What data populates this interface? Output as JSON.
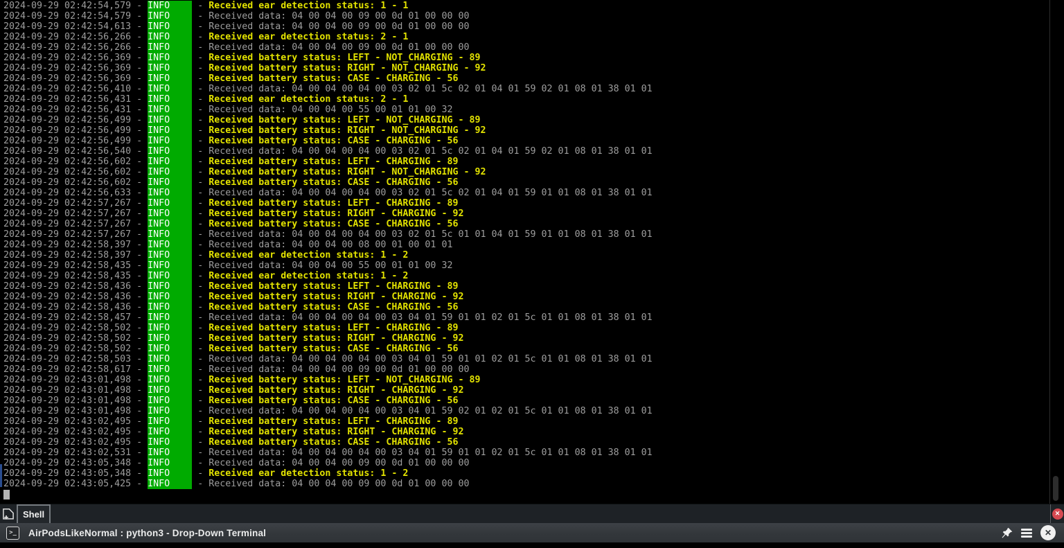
{
  "colors": {
    "background": "#000000",
    "log_default_gray": "#9e9e9e",
    "log_event_yellow": "#e2e200",
    "info_badge_bg": "#00ab00",
    "info_badge_fg": "#ffffff",
    "tab_close_red": "#d54850",
    "output_marker_blue": "#2a4d8f"
  },
  "terminal": {
    "separator": " - ",
    "level_field_width": 8,
    "lines": [
      {
        "time": "2024-09-29 02:42:54,579",
        "level": "INFO",
        "kind": "event",
        "message": "Received ear detection status: 1 - 1"
      },
      {
        "time": "2024-09-29 02:42:54,579",
        "level": "INFO",
        "kind": "data",
        "message": "Received data: 04 00 04 00 09 00 0d 01 00 00 00"
      },
      {
        "time": "2024-09-29 02:42:54,613",
        "level": "INFO",
        "kind": "data",
        "message": "Received data: 04 00 04 00 09 00 0d 01 00 00 00"
      },
      {
        "time": "2024-09-29 02:42:56,266",
        "level": "INFO",
        "kind": "event",
        "message": "Received ear detection status: 2 - 1"
      },
      {
        "time": "2024-09-29 02:42:56,266",
        "level": "INFO",
        "kind": "data",
        "message": "Received data: 04 00 04 00 09 00 0d 01 00 00 00"
      },
      {
        "time": "2024-09-29 02:42:56,369",
        "level": "INFO",
        "kind": "event",
        "message": "Received battery status: LEFT - NOT_CHARGING - 89"
      },
      {
        "time": "2024-09-29 02:42:56,369",
        "level": "INFO",
        "kind": "event",
        "message": "Received battery status: RIGHT - NOT_CHARGING - 92"
      },
      {
        "time": "2024-09-29 02:42:56,369",
        "level": "INFO",
        "kind": "event",
        "message": "Received battery status: CASE - CHARGING - 56"
      },
      {
        "time": "2024-09-29 02:42:56,410",
        "level": "INFO",
        "kind": "data",
        "message": "Received data: 04 00 04 00 04 00 03 02 01 5c 02 01 04 01 59 02 01 08 01 38 01 01"
      },
      {
        "time": "2024-09-29 02:42:56,431",
        "level": "INFO",
        "kind": "event",
        "message": "Received ear detection status: 2 - 1"
      },
      {
        "time": "2024-09-29 02:42:56,431",
        "level": "INFO",
        "kind": "data",
        "message": "Received data: 04 00 04 00 55 00 01 01 00 32"
      },
      {
        "time": "2024-09-29 02:42:56,499",
        "level": "INFO",
        "kind": "event",
        "message": "Received battery status: LEFT - NOT_CHARGING - 89"
      },
      {
        "time": "2024-09-29 02:42:56,499",
        "level": "INFO",
        "kind": "event",
        "message": "Received battery status: RIGHT - NOT_CHARGING - 92"
      },
      {
        "time": "2024-09-29 02:42:56,499",
        "level": "INFO",
        "kind": "event",
        "message": "Received battery status: CASE - CHARGING - 56"
      },
      {
        "time": "2024-09-29 02:42:56,540",
        "level": "INFO",
        "kind": "data",
        "message": "Received data: 04 00 04 00 04 00 03 02 01 5c 02 01 04 01 59 02 01 08 01 38 01 01"
      },
      {
        "time": "2024-09-29 02:42:56,602",
        "level": "INFO",
        "kind": "event",
        "message": "Received battery status: LEFT - CHARGING - 89"
      },
      {
        "time": "2024-09-29 02:42:56,602",
        "level": "INFO",
        "kind": "event",
        "message": "Received battery status: RIGHT - NOT_CHARGING - 92"
      },
      {
        "time": "2024-09-29 02:42:56,602",
        "level": "INFO",
        "kind": "event",
        "message": "Received battery status: CASE - CHARGING - 56"
      },
      {
        "time": "2024-09-29 02:42:56,633",
        "level": "INFO",
        "kind": "data",
        "message": "Received data: 04 00 04 00 04 00 03 02 01 5c 02 01 04 01 59 01 01 08 01 38 01 01"
      },
      {
        "time": "2024-09-29 02:42:57,267",
        "level": "INFO",
        "kind": "event",
        "message": "Received battery status: LEFT - CHARGING - 89"
      },
      {
        "time": "2024-09-29 02:42:57,267",
        "level": "INFO",
        "kind": "event",
        "message": "Received battery status: RIGHT - CHARGING - 92"
      },
      {
        "time": "2024-09-29 02:42:57,267",
        "level": "INFO",
        "kind": "event",
        "message": "Received battery status: CASE - CHARGING - 56"
      },
      {
        "time": "2024-09-29 02:42:57,267",
        "level": "INFO",
        "kind": "data",
        "message": "Received data: 04 00 04 00 04 00 03 02 01 5c 01 01 04 01 59 01 01 08 01 38 01 01"
      },
      {
        "time": "2024-09-29 02:42:58,397",
        "level": "INFO",
        "kind": "data",
        "message": "Received data: 04 00 04 00 08 00 01 00 01 01"
      },
      {
        "time": "2024-09-29 02:42:58,397",
        "level": "INFO",
        "kind": "event",
        "message": "Received ear detection status: 1 - 2"
      },
      {
        "time": "2024-09-29 02:42:58,435",
        "level": "INFO",
        "kind": "data",
        "message": "Received data: 04 00 04 00 55 00 01 01 00 32"
      },
      {
        "time": "2024-09-29 02:42:58,435",
        "level": "INFO",
        "kind": "event",
        "message": "Received ear detection status: 1 - 2"
      },
      {
        "time": "2024-09-29 02:42:58,436",
        "level": "INFO",
        "kind": "event",
        "message": "Received battery status: LEFT - CHARGING - 89"
      },
      {
        "time": "2024-09-29 02:42:58,436",
        "level": "INFO",
        "kind": "event",
        "message": "Received battery status: RIGHT - CHARGING - 92"
      },
      {
        "time": "2024-09-29 02:42:58,436",
        "level": "INFO",
        "kind": "event",
        "message": "Received battery status: CASE - CHARGING - 56"
      },
      {
        "time": "2024-09-29 02:42:58,457",
        "level": "INFO",
        "kind": "data",
        "message": "Received data: 04 00 04 00 04 00 03 04 01 59 01 01 02 01 5c 01 01 08 01 38 01 01"
      },
      {
        "time": "2024-09-29 02:42:58,502",
        "level": "INFO",
        "kind": "event",
        "message": "Received battery status: LEFT - CHARGING - 89"
      },
      {
        "time": "2024-09-29 02:42:58,502",
        "level": "INFO",
        "kind": "event",
        "message": "Received battery status: RIGHT - CHARGING - 92"
      },
      {
        "time": "2024-09-29 02:42:58,502",
        "level": "INFO",
        "kind": "event",
        "message": "Received battery status: CASE - CHARGING - 56"
      },
      {
        "time": "2024-09-29 02:42:58,503",
        "level": "INFO",
        "kind": "data",
        "message": "Received data: 04 00 04 00 04 00 03 04 01 59 01 01 02 01 5c 01 01 08 01 38 01 01"
      },
      {
        "time": "2024-09-29 02:42:58,617",
        "level": "INFO",
        "kind": "data",
        "message": "Received data: 04 00 04 00 09 00 0d 01 00 00 00"
      },
      {
        "time": "2024-09-29 02:43:01,498",
        "level": "INFO",
        "kind": "event",
        "message": "Received battery status: LEFT - NOT_CHARGING - 89"
      },
      {
        "time": "2024-09-29 02:43:01,498",
        "level": "INFO",
        "kind": "event",
        "message": "Received battery status: RIGHT - CHARGING - 92"
      },
      {
        "time": "2024-09-29 02:43:01,498",
        "level": "INFO",
        "kind": "event",
        "message": "Received battery status: CASE - CHARGING - 56"
      },
      {
        "time": "2024-09-29 02:43:01,498",
        "level": "INFO",
        "kind": "data",
        "message": "Received data: 04 00 04 00 04 00 03 04 01 59 02 01 02 01 5c 01 01 08 01 38 01 01"
      },
      {
        "time": "2024-09-29 02:43:02,495",
        "level": "INFO",
        "kind": "event",
        "message": "Received battery status: LEFT - CHARGING - 89"
      },
      {
        "time": "2024-09-29 02:43:02,495",
        "level": "INFO",
        "kind": "event",
        "message": "Received battery status: RIGHT - CHARGING - 92"
      },
      {
        "time": "2024-09-29 02:43:02,495",
        "level": "INFO",
        "kind": "event",
        "message": "Received battery status: CASE - CHARGING - 56"
      },
      {
        "time": "2024-09-29 02:43:02,531",
        "level": "INFO",
        "kind": "data",
        "message": "Received data: 04 00 04 00 04 00 03 04 01 59 01 01 02 01 5c 01 01 08 01 38 01 01"
      },
      {
        "time": "2024-09-29 02:43:05,348",
        "level": "INFO",
        "kind": "data",
        "message": "Received data: 04 00 04 00 09 00 0d 01 00 00 00"
      },
      {
        "time": "2024-09-29 02:43:05,348",
        "level": "INFO",
        "kind": "event",
        "message": "Received ear detection status: 1 - 2"
      },
      {
        "time": "2024-09-29 02:43:05,425",
        "level": "INFO",
        "kind": "data",
        "message": "Received data: 04 00 04 00 09 00 0d 01 00 00 00"
      }
    ]
  },
  "tab_bar": {
    "tabs": [
      {
        "label": "Shell",
        "active": true
      }
    ]
  },
  "title_bar": {
    "title": "AirPodsLikeNormal : python3 - Drop-Down Terminal"
  },
  "icons": {
    "new_tab": "new-tab-icon",
    "terminal_prompt_glyph": ">_",
    "pin": "pin-icon",
    "menu": "hamburger-menu-icon",
    "close_tab_glyph": "✕",
    "close_window_glyph": "✕"
  }
}
